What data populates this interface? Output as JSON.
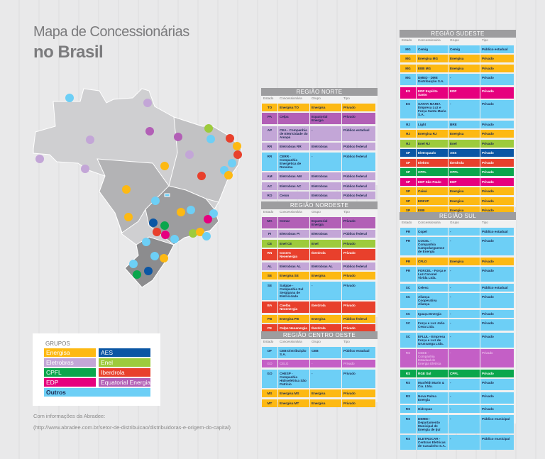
{
  "title_line1": "Mapa de Concessionárias",
  "title_line2": "no Brasil",
  "colors": {
    "energisa": "#fdb913",
    "eletrobras": "#c3a6d7",
    "cpfl": "#0aa64c",
    "edp": "#e6007e",
    "outros": "#6dcff6",
    "aes": "#0b56a4",
    "enel": "#9dcb3c",
    "iberdrola": "#e8402c",
    "equatorial": "#b25fb6",
    "ceee": "#c45fc6"
  },
  "columns": [
    "Estado",
    "Concessionária",
    "Grupo",
    "Tipo"
  ],
  "legend": {
    "title": "GRUPOS",
    "items": [
      {
        "label": "Energisa",
        "color": "energisa"
      },
      {
        "label": "AES",
        "color": "aes"
      },
      {
        "label": "Eletrobras",
        "color": "eletrobras"
      },
      {
        "label": "Enel",
        "color": "enel"
      },
      {
        "label": "CPFL",
        "color": "cpfl"
      },
      {
        "label": "Iberdrola",
        "color": "iberdrola"
      },
      {
        "label": "EDP",
        "color": "edp"
      },
      {
        "label": "Equatorial Energia",
        "color": "equatorial"
      },
      {
        "label": "Outros",
        "color": "outros"
      }
    ]
  },
  "source_line1": "Com informações da Abradee:",
  "source_line2": "(http://www.abradee.com.br/setor-de-distribuicao/distribuidoras-e-origem-do-capital)",
  "regions": [
    {
      "id": "norte",
      "title": "REGIÃO NORTE",
      "rows": [
        [
          "TO",
          "Energisa TO",
          "Energisa",
          "Privado",
          "energisa"
        ],
        [
          "PA",
          "Celpa",
          "Equatorial Energia",
          "Privado",
          "equatorial"
        ],
        [
          "AP",
          "CEA - Companhia de Eletricidade do Amapá",
          "-",
          "Público estadual",
          "eletrobras"
        ],
        [
          "RR",
          "Eletrobras RR",
          "Eletrobras",
          "Público federal",
          "eletrobras"
        ],
        [
          "RR",
          "CERR - Companhia Energética de Roraima",
          "-",
          "Público federal",
          "outros"
        ],
        [
          "AM",
          "Eletrobras AM",
          "Eletrobras",
          "Público federal",
          "eletrobras"
        ],
        [
          "AC",
          "Eletrobras AC",
          "Eletrobras",
          "Público federal",
          "eletrobras"
        ],
        [
          "RO",
          "Ceron",
          "Eletrobras",
          "Público federal",
          "eletrobras"
        ]
      ]
    },
    {
      "id": "nordeste",
      "title": "REGIÃO NORDESTE",
      "rows": [
        [
          "MA",
          "Cemar",
          "Equatorial Energia",
          "Privado",
          "equatorial"
        ],
        [
          "PI",
          "Eletrobras PI",
          "Eletrobras",
          "Público federal",
          "eletrobras"
        ],
        [
          "CE",
          "Enel CE",
          "Enel",
          "Privado",
          "enel"
        ],
        [
          "RN",
          "Cosern Neoenergia",
          "Iberdrola",
          "Privado",
          "iberdrola"
        ],
        [
          "AL",
          "Eletrobras AL",
          "Eletrobras AL",
          "Público federal",
          "eletrobras"
        ],
        [
          "SE",
          "Energisa SE",
          "Energisa",
          "Privado",
          "energisa"
        ],
        [
          "SE",
          "Sulgipe - Companhia Sul Sergipana de Eletricidade",
          "-",
          "Privado",
          "outros"
        ],
        [
          "BA",
          "Coelba Neoenergia",
          "Iberdrola",
          "Privado",
          "iberdrola"
        ],
        [
          "PB",
          "Energisa PB",
          "Energisa",
          "Público federal",
          "energisa"
        ],
        [
          "PE",
          "Celpe Neoenergia",
          "Iberdrola",
          "Privado",
          "iberdrola"
        ]
      ]
    },
    {
      "id": "centro-oeste",
      "title": "REGIÃO CENTRO OESTE",
      "rows": [
        [
          "DF",
          "CEB Distribuição S.A.",
          "CEB",
          "Público estadual",
          "outros"
        ],
        [
          "GO",
          "CELG",
          "-",
          "Privado",
          "ceee"
        ],
        [
          "GO",
          "CHESP - Companhia Hidroelétrica São Patrício",
          "-",
          "Privado",
          "outros"
        ],
        [
          "MS",
          "Energisa MS",
          "Energisa",
          "Privado",
          "energisa"
        ],
        [
          "MT",
          "Energisa MT",
          "Energisa",
          "Privado",
          "energisa"
        ]
      ]
    },
    {
      "id": "sudeste",
      "title": "REGIÃO SUDESTE",
      "rows": [
        [
          "MG",
          "Cemig",
          "Cemig",
          "Público estadual",
          "outros"
        ],
        [
          "MG",
          "Energisa MG",
          "Energisa",
          "Privado",
          "energisa"
        ],
        [
          "MG",
          "EEB MG",
          "Energisa",
          "Privado",
          "energisa"
        ],
        [
          "MG",
          "DMED - DME Distribuição S.A.",
          "-",
          "Privado",
          "outros"
        ],
        [
          "ES",
          "EDP Espírito Santo",
          "EDP",
          "Privado",
          "edp"
        ],
        [
          "ES",
          "SANTA MARIA Empresa Luz e Força Santa Maria S.A.",
          "-",
          "Privado",
          "outros"
        ],
        [
          "RJ",
          "Light",
          "BRE",
          "Privado",
          "outros"
        ],
        [
          "RJ",
          "Energisa RJ",
          "Energisa",
          "Privado",
          "energisa"
        ],
        [
          "RJ",
          "Enel RJ",
          "Enel",
          "Privado",
          "enel"
        ],
        [
          "SP",
          "Eletropaulo",
          "AES",
          "Privado",
          "aes"
        ],
        [
          "SP",
          "Elektro",
          "Iberdrola",
          "Privado",
          "iberdrola"
        ],
        [
          "SP",
          "CPFL",
          "CPFL",
          "Privado",
          "cpfl"
        ],
        [
          "SP",
          "EDP São Paulo",
          "EDP",
          "Privado",
          "edp"
        ],
        [
          "SP",
          "Caiuá",
          "Energisa",
          "Privado",
          "energisa"
        ],
        [
          "SP",
          "EDEVP",
          "Energisa",
          "Privado",
          "energisa"
        ],
        [
          "SP",
          "EEB",
          "Energisa",
          "Privado",
          "energisa"
        ]
      ]
    },
    {
      "id": "sul",
      "title": "REGIÃO SUL",
      "rows": [
        [
          "PR",
          "Copel",
          "-",
          "Público estadual",
          "outros"
        ],
        [
          "PR",
          "COCEL - Companhia Campolarguense de Energia",
          "-",
          "Privado",
          "outros"
        ],
        [
          "PR",
          "CFLO",
          "Energisa",
          "Privado",
          "energisa"
        ],
        [
          "PR",
          "FORCEL - Força e Luz Coronel Vivida Ltda.",
          "-",
          "Privado",
          "outros"
        ],
        [
          "SC",
          "Celesc",
          "-",
          "Público estadual",
          "outros"
        ],
        [
          "SC",
          "Aliança Cooperativa Aliança",
          "-",
          "Privado",
          "outros"
        ],
        [
          "SC",
          "Iguaçu Energia",
          "-",
          "Privado",
          "outros"
        ],
        [
          "SC",
          "Força e Luz João Cesa Ltda.",
          "-",
          "Privado",
          "outros"
        ],
        [
          "SC",
          "EFLUL - Empresa Força e Luz de Urussanga Ltda.",
          "-",
          "Privado",
          "outros"
        ],
        [
          "RS",
          "CEEE - Companhia Estadual de Energia Elétrica",
          "-",
          "Privado",
          "ceee"
        ],
        [
          "RS",
          "RGE Sul",
          "CPFL",
          "Privado",
          "cpfl"
        ],
        [
          "RS",
          "Muxfeldt Marin & Cia. Ltda.",
          "-",
          "Privado",
          "outros"
        ],
        [
          "RS",
          "Nova Palma Energia",
          "-",
          "Privado",
          "outros"
        ],
        [
          "RS",
          "Hidropan",
          "-",
          "Privado",
          "outros"
        ],
        [
          "RS",
          "DEMEI - Departamento Municipal de Energia de Ijuí",
          "-",
          "Público municipal",
          "outros"
        ],
        [
          "RS",
          "ELETROCAR - Centrais Elétricas de Carazinho S.A.",
          "-",
          "Público municipal",
          "outros"
        ]
      ]
    }
  ],
  "map_markers": [
    [
      "RR",
      "outros"
    ],
    [
      "AP",
      "eletrobras"
    ],
    [
      "PA",
      "equatorial"
    ],
    [
      "AM",
      "eletrobras"
    ],
    [
      "MA",
      "equatorial"
    ],
    [
      "CE",
      "enel"
    ],
    [
      "CE",
      "outros"
    ],
    [
      "RN",
      "iberdrola"
    ],
    [
      "PB",
      "energisa"
    ],
    [
      "PE",
      "iberdrola"
    ],
    [
      "AC",
      "eletrobras"
    ],
    [
      "RO",
      "eletrobras"
    ],
    [
      "PI",
      "eletrobras"
    ],
    [
      "AL",
      "outros"
    ],
    [
      "SE",
      "outros"
    ],
    [
      "SE",
      "energisa"
    ],
    [
      "TO",
      "energisa"
    ],
    [
      "BA",
      "iberdrola"
    ],
    [
      "MT",
      "energisa"
    ],
    [
      "GO",
      "outros"
    ],
    [
      "MG",
      "energisa"
    ],
    [
      "MG",
      "outros"
    ],
    [
      "ES",
      "outros"
    ],
    [
      "ES",
      "edp"
    ],
    [
      "MS",
      "energisa"
    ],
    [
      "SP",
      "aes"
    ],
    [
      "SP",
      "cpfl"
    ],
    [
      "SP",
      "iberdrola"
    ],
    [
      "SP",
      "edp"
    ],
    [
      "SP",
      "outros"
    ],
    [
      "RJ",
      "enel"
    ],
    [
      "RJ",
      "energisa"
    ],
    [
      "RJ",
      "outros"
    ],
    [
      "PR",
      "outros"
    ],
    [
      "SC",
      "outros"
    ],
    [
      "SC",
      "energisa"
    ],
    [
      "RS",
      "outros"
    ],
    [
      "RS",
      "aes"
    ],
    [
      "RS",
      "cpfl"
    ]
  ]
}
